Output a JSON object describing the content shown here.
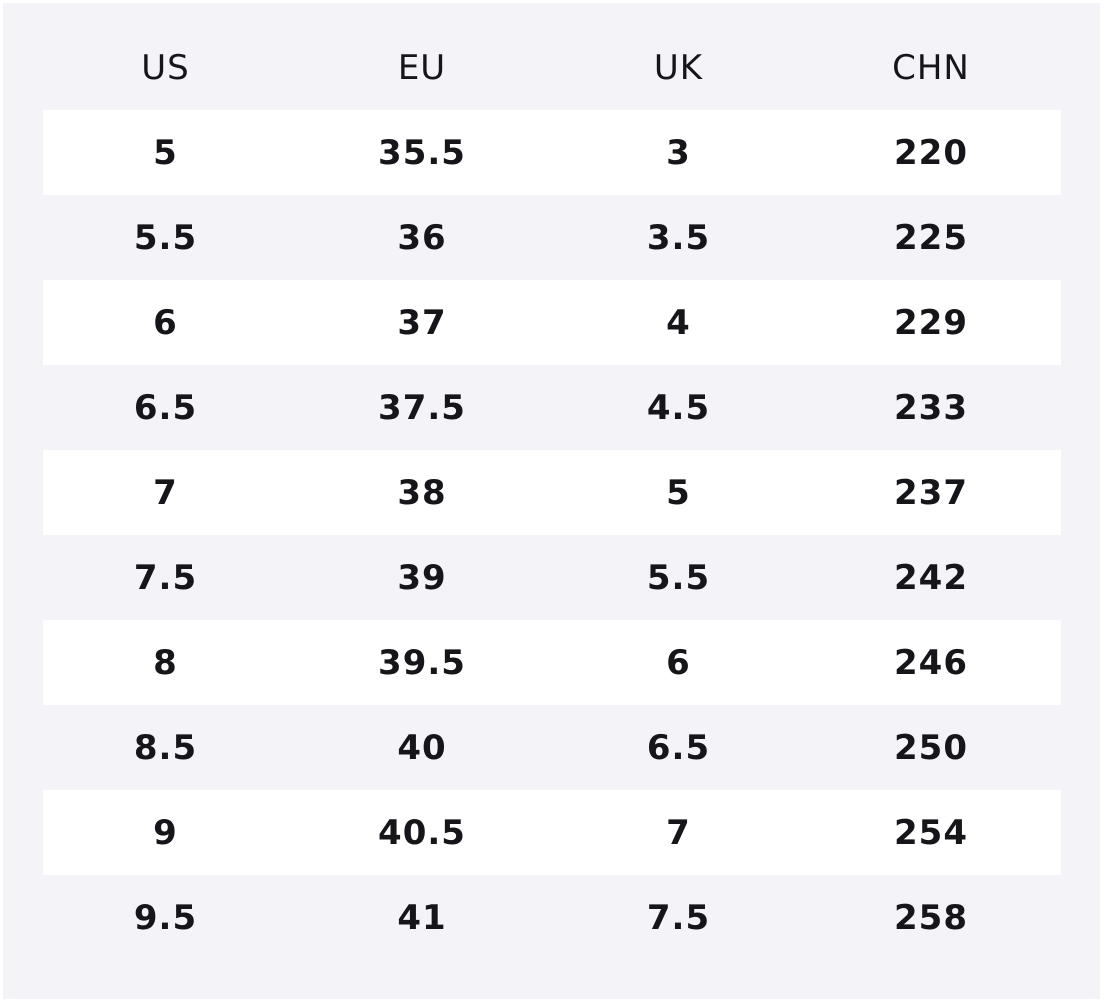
{
  "table": {
    "header": [
      "US",
      "EU",
      "UK",
      "CHN"
    ],
    "rows": [
      [
        "5",
        "35.5",
        "3",
        "220"
      ],
      [
        "5.5",
        "36",
        "3.5",
        "225"
      ],
      [
        "6",
        "37",
        "4",
        "229"
      ],
      [
        "6.5",
        "37.5",
        "4.5",
        "233"
      ],
      [
        "7",
        "38",
        "5",
        "237"
      ],
      [
        "7.5",
        "39",
        "5.5",
        "242"
      ],
      [
        "8",
        "39.5",
        "6",
        "246"
      ],
      [
        "8.5",
        "40",
        "6.5",
        "250"
      ],
      [
        "9",
        "40.5",
        "7",
        "254"
      ],
      [
        "9.5",
        "41",
        "7.5",
        "258"
      ]
    ]
  }
}
